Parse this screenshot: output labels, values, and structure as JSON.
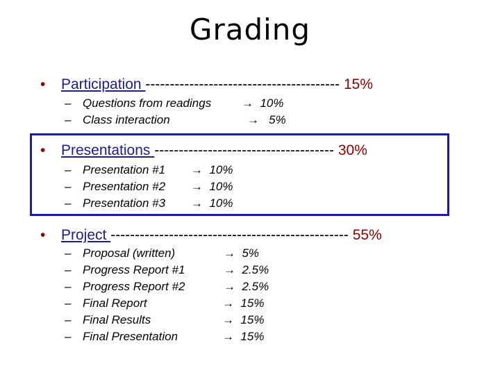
{
  "title": "Grading",
  "colors": {
    "heading": "#1c1c8a",
    "percent": "#8b0000",
    "box": "#1c1c9a"
  },
  "sections": [
    {
      "bullet": "•",
      "heading": "Participation ",
      "dashes": "----------------------------------------",
      "percent": "15%",
      "items": [
        {
          "dash": "–",
          "label": "Questions from readings",
          "arrow": "→",
          "value": "10%"
        },
        {
          "dash": "–",
          "label": "Class interaction",
          "arrow": "→",
          "value": "5%"
        }
      ]
    },
    {
      "bullet": "•",
      "heading": "Presentations ",
      "dashes": "-------------------------------------",
      "percent": "30%",
      "items": [
        {
          "dash": "–",
          "label": "Presentation #1",
          "arrow": "→",
          "value": "10%"
        },
        {
          "dash": "–",
          "label": "Presentation #2",
          "arrow": "→",
          "value": "10%"
        },
        {
          "dash": "–",
          "label": "Presentation #3",
          "arrow": "→",
          "value": "10%"
        }
      ]
    },
    {
      "bullet": "•",
      "heading": "Project ",
      "dashes": "-------------------------------------------------",
      "percent": "55%",
      "items": [
        {
          "dash": "–",
          "label": "Proposal (written)",
          "arrow": "→",
          "value": "5%"
        },
        {
          "dash": "–",
          "label": "Progress Report #1",
          "arrow": "→",
          "value": "2.5%"
        },
        {
          "dash": "–",
          "label": "Progress Report #2",
          "arrow": "→",
          "value": "2.5%"
        },
        {
          "dash": "–",
          "label": "Final Report",
          "arrow": "→",
          "value": "15%"
        },
        {
          "dash": "–",
          "label": "Final Results",
          "arrow": "→",
          "value": "15%"
        },
        {
          "dash": "–",
          "label": "Final Presentation",
          "arrow": "→",
          "value": "15%"
        }
      ]
    }
  ]
}
